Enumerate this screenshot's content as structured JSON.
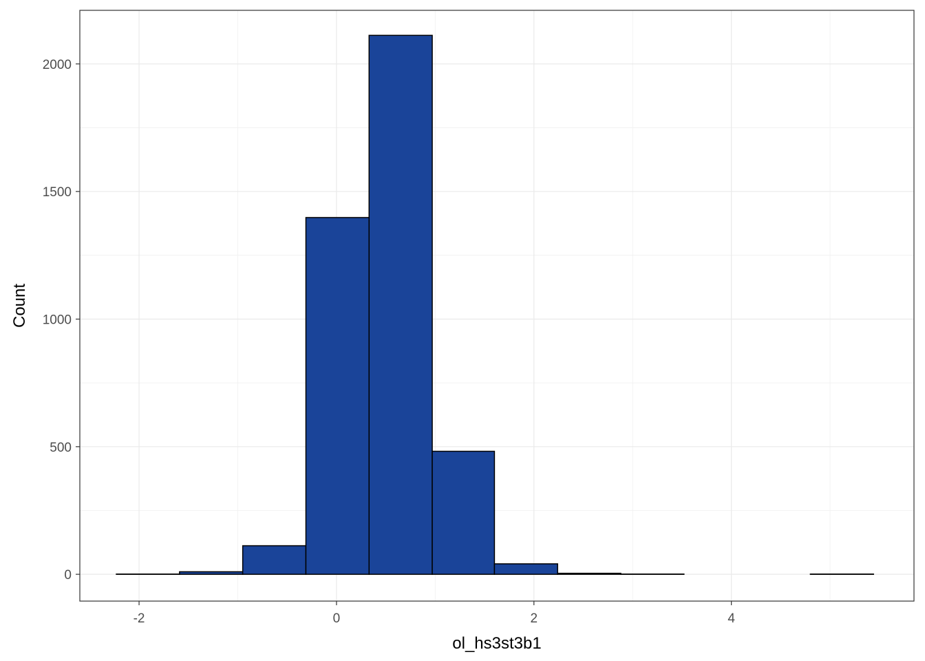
{
  "chart_data": {
    "type": "bar",
    "xlabel": "ol_hs3st3b1",
    "ylabel": "Count",
    "xlim": [
      -2.6,
      5.85
    ],
    "ylim": [
      -105,
      2210
    ],
    "x_ticks": [
      -2,
      0,
      2,
      4
    ],
    "x_tick_labels": [
      "-2",
      "0",
      "2",
      "4"
    ],
    "y_ticks": [
      0,
      500,
      1000,
      1500,
      2000
    ],
    "y_tick_labels": [
      "0",
      "500",
      "1000",
      "1500",
      "2000"
    ],
    "grid": true,
    "bar_fill": "#1a4499",
    "bar_stroke": "#000000",
    "bins": [
      {
        "x0": -2.23,
        "x1": -1.59,
        "count": 1
      },
      {
        "x0": -1.59,
        "x1": -0.95,
        "count": 10
      },
      {
        "x0": -0.95,
        "x1": -0.31,
        "count": 112
      },
      {
        "x0": -0.31,
        "x1": 0.33,
        "count": 1398
      },
      {
        "x0": 0.33,
        "x1": 0.97,
        "count": 2112
      },
      {
        "x0": 0.97,
        "x1": 1.6,
        "count": 482
      },
      {
        "x0": 1.6,
        "x1": 2.24,
        "count": 41
      },
      {
        "x0": 2.24,
        "x1": 2.88,
        "count": 4
      },
      {
        "x0": 2.88,
        "x1": 3.52,
        "count": 1
      },
      {
        "x0": 3.52,
        "x1": 4.16,
        "count": 0
      },
      {
        "x0": 4.16,
        "x1": 4.8,
        "count": 0
      },
      {
        "x0": 4.8,
        "x1": 5.44,
        "count": 1
      }
    ]
  }
}
